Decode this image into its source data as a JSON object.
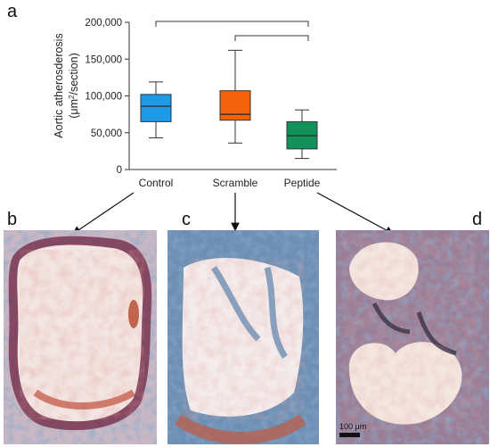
{
  "panels": {
    "a": "a",
    "b": "b",
    "c": "c",
    "d": "d"
  },
  "scale_bar_label": "100 μm",
  "colors": {
    "Control": "#1e9ae6",
    "Scramble": "#f5620c",
    "Peptide": "#12925a"
  },
  "chart_data": {
    "type": "boxplot",
    "ylabel_line1": "Aortic atherosderosis",
    "ylabel_line2_pre": "(μm",
    "ylabel_line2_sup": "2",
    "ylabel_line2_post": "/section)",
    "ylim": [
      0,
      200000
    ],
    "yticks": [
      0,
      50000,
      100000,
      150000,
      200000
    ],
    "ytick_labels": [
      "0",
      "50,000",
      "100,000",
      "150,000",
      "200,000"
    ],
    "categories": [
      "Control",
      "Scramble",
      "Peptide"
    ],
    "boxes": [
      {
        "category": "Control",
        "min": 43000,
        "q1": 65000,
        "median": 86000,
        "q3": 102000,
        "max": 119000
      },
      {
        "category": "Scramble",
        "min": 36000,
        "q1": 67000,
        "median": 75000,
        "q3": 107000,
        "max": 162000
      },
      {
        "category": "Peptide",
        "min": 15000,
        "q1": 28000,
        "median": 46000,
        "q3": 65000,
        "max": 81000
      }
    ],
    "significance_brackets": [
      {
        "from": "Control",
        "to": "Peptide"
      },
      {
        "from": "Scramble",
        "to": "Peptide"
      }
    ],
    "grid": false,
    "legend": "none"
  },
  "images": [
    {
      "panel": "b",
      "description_icon": "histology-image-control"
    },
    {
      "panel": "c",
      "description_icon": "histology-image-scramble"
    },
    {
      "panel": "d",
      "description_icon": "histology-image-peptide"
    }
  ]
}
